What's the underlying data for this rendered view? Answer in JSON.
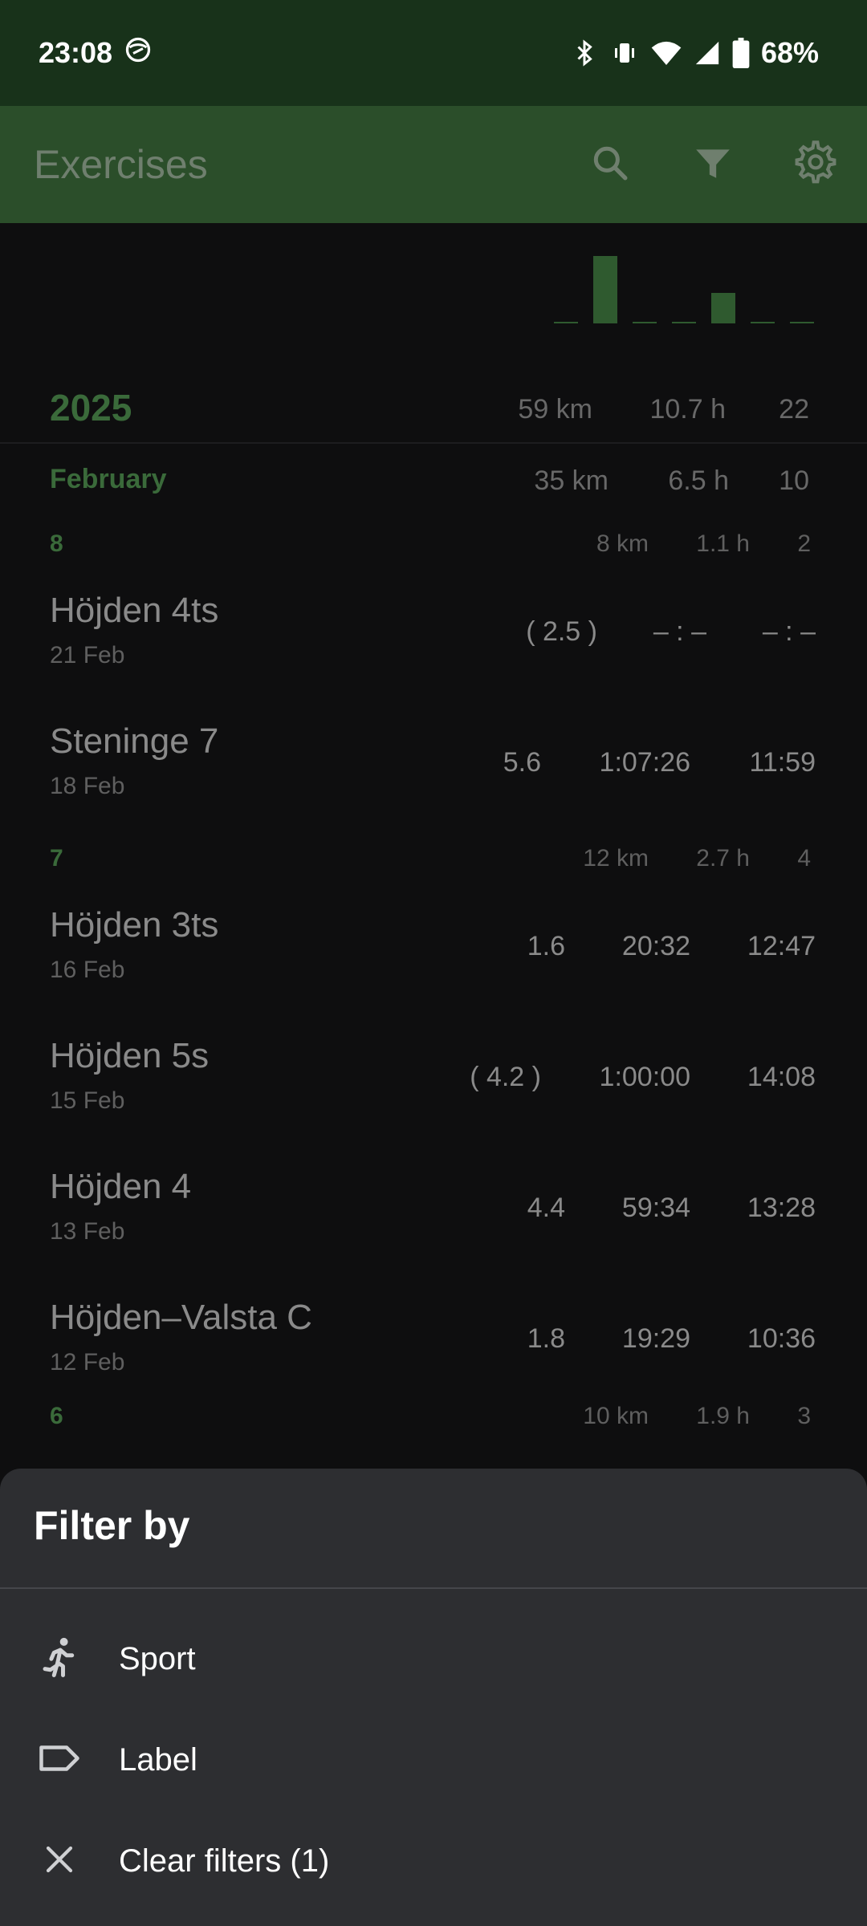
{
  "status_bar": {
    "time": "23:08",
    "battery": "68%",
    "icons": [
      "face-icon",
      "bluetooth-icon",
      "vibrate-icon",
      "wifi-icon",
      "signal-icon",
      "battery-icon"
    ]
  },
  "app_bar": {
    "title": "Exercises",
    "actions": [
      "search-icon",
      "filter-icon",
      "settings-icon"
    ]
  },
  "mini_chart": {
    "values": [
      0,
      1,
      0,
      0,
      0.45,
      0,
      0
    ]
  },
  "year": {
    "label": "2025",
    "distance": "59 km",
    "time": "10.7 h",
    "count": "22"
  },
  "month": {
    "label": "February",
    "distance": "35 km",
    "time": "6.5 h",
    "count": "10"
  },
  "weeks": [
    {
      "label": "8",
      "distance": "8 km",
      "time": "1.1 h",
      "count": "2",
      "exercises": [
        {
          "name": "Höjden 4ts",
          "date": "21 Feb",
          "distance": "( 2.5 )",
          "duration": "– : –",
          "pace": "– : –"
        },
        {
          "name": "Steninge 7",
          "date": "18 Feb",
          "distance": "5.6",
          "duration": "1:07:26",
          "pace": "11:59"
        }
      ]
    },
    {
      "label": "7",
      "distance": "12 km",
      "time": "2.7 h",
      "count": "4",
      "exercises": [
        {
          "name": "Höjden 3ts",
          "date": "16 Feb",
          "distance": "1.6",
          "duration": "20:32",
          "pace": "12:47"
        },
        {
          "name": "Höjden 5s",
          "date": "15 Feb",
          "distance": "( 4.2 )",
          "duration": "1:00:00",
          "pace": "14:08"
        },
        {
          "name": "Höjden 4",
          "date": "13 Feb",
          "distance": "4.4",
          "duration": "59:34",
          "pace": "13:28"
        },
        {
          "name": "Höjden–Valsta C",
          "date": "12 Feb",
          "distance": "1.8",
          "duration": "19:29",
          "pace": "10:36"
        }
      ]
    },
    {
      "label": "6",
      "distance": "10 km",
      "time": "1.9 h",
      "count": "3",
      "exercises": []
    }
  ],
  "sheet": {
    "title": "Filter by",
    "items": [
      {
        "label": "Sport",
        "icon": "running-person-icon"
      },
      {
        "label": "Label",
        "icon": "label-tag-icon"
      },
      {
        "label": "Clear filters (1)",
        "icon": "close-icon"
      }
    ]
  }
}
